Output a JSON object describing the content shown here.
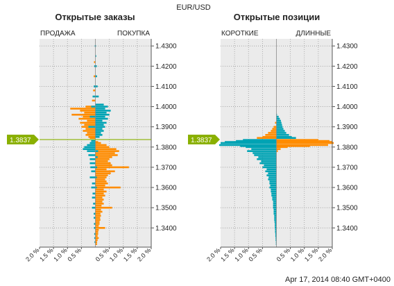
{
  "title": "EUR/USD",
  "timestamp": "Apr 17, 2014 08:40 GMT+0400",
  "current_price_label": "1.3837",
  "colors": {
    "orange": "#ff8c00",
    "teal": "#00a3b4",
    "panel": "#ebebeb",
    "price_line": "#8ab000",
    "price_tag": "#8ab000"
  },
  "chart_data": [
    {
      "type": "bar",
      "orientation": "horizontal-butterfly",
      "title": "Открытые заказы",
      "left_label": "ПРОДАЖА",
      "right_label": "ПОКУПКА",
      "x_ticks": [
        "2.0 %",
        "1.5 %",
        "1.0 %",
        "0.5 %",
        "0.5 %",
        "1.0 %",
        "1.5 %",
        "2.0 %"
      ],
      "xlim": [
        -2.0,
        2.0
      ],
      "y_ticks": [
        "1.4300",
        "1.4200",
        "1.4100",
        "1.4000",
        "1.3900",
        "1.3800",
        "1.3700",
        "1.3600",
        "1.3500",
        "1.3400"
      ],
      "ylim": [
        1.3305,
        1.4335
      ],
      "current_price": 1.3837,
      "series": [
        {
          "color": "orange",
          "side": "left",
          "points": [
            [
              1.422,
              0.05
            ],
            [
              1.415,
              0.06
            ],
            [
              1.408,
              0.08
            ],
            [
              1.403,
              0.12
            ],
            [
              1.4,
              0.35
            ],
            [
              1.399,
              0.9
            ],
            [
              1.398,
              0.55
            ],
            [
              1.397,
              0.4
            ],
            [
              1.396,
              0.85
            ],
            [
              1.395,
              0.45
            ],
            [
              1.394,
              0.6
            ],
            [
              1.393,
              0.3
            ],
            [
              1.392,
              0.55
            ],
            [
              1.391,
              0.4
            ],
            [
              1.39,
              0.5
            ],
            [
              1.389,
              0.35
            ],
            [
              1.388,
              0.45
            ],
            [
              1.387,
              0.3
            ],
            [
              1.386,
              0.35
            ],
            [
              1.385,
              0.25
            ],
            [
              1.3845,
              0.2
            ]
          ]
        },
        {
          "color": "teal",
          "side": "left",
          "points": [
            [
              1.43,
              0.02
            ],
            [
              1.42,
              0.04
            ],
            [
              1.41,
              0.06
            ],
            [
              1.405,
              0.1
            ],
            [
              1.4,
              0.15
            ],
            [
              1.395,
              0.2
            ],
            [
              1.39,
              0.25
            ],
            [
              1.383,
              0.15
            ],
            [
              1.382,
              0.2
            ],
            [
              1.381,
              0.3
            ],
            [
              1.38,
              0.4
            ],
            [
              1.379,
              0.45
            ],
            [
              1.378,
              0.3
            ],
            [
              1.376,
              0.25
            ],
            [
              1.374,
              0.2
            ],
            [
              1.372,
              0.2
            ],
            [
              1.37,
              0.18
            ],
            [
              1.368,
              0.15
            ],
            [
              1.365,
              0.2
            ],
            [
              1.362,
              0.12
            ],
            [
              1.36,
              0.15
            ],
            [
              1.357,
              0.1
            ],
            [
              1.355,
              0.12
            ],
            [
              1.352,
              0.08
            ],
            [
              1.35,
              0.12
            ],
            [
              1.347,
              0.06
            ],
            [
              1.345,
              0.06
            ],
            [
              1.342,
              0.05
            ],
            [
              1.34,
              0.05
            ],
            [
              1.337,
              0.04
            ],
            [
              1.335,
              0.04
            ],
            [
              1.333,
              0.03
            ]
          ]
        },
        {
          "color": "orange",
          "side": "right",
          "points": [
            [
              1.3825,
              0.1
            ],
            [
              1.382,
              0.2
            ],
            [
              1.381,
              0.4
            ],
            [
              1.38,
              0.5
            ],
            [
              1.379,
              0.75
            ],
            [
              1.378,
              0.85
            ],
            [
              1.377,
              0.7
            ],
            [
              1.376,
              0.8
            ],
            [
              1.375,
              0.6
            ],
            [
              1.374,
              0.5
            ],
            [
              1.373,
              0.45
            ],
            [
              1.372,
              0.55
            ],
            [
              1.371,
              0.6
            ],
            [
              1.37,
              1.2
            ],
            [
              1.369,
              0.4
            ],
            [
              1.368,
              0.7
            ],
            [
              1.367,
              0.55
            ],
            [
              1.366,
              0.45
            ],
            [
              1.365,
              0.4
            ],
            [
              1.364,
              0.35
            ],
            [
              1.363,
              0.4
            ],
            [
              1.362,
              0.45
            ],
            [
              1.361,
              0.35
            ],
            [
              1.36,
              0.9
            ],
            [
              1.359,
              0.3
            ],
            [
              1.358,
              0.4
            ],
            [
              1.357,
              0.3
            ],
            [
              1.356,
              0.35
            ],
            [
              1.355,
              0.25
            ],
            [
              1.354,
              0.3
            ],
            [
              1.353,
              0.25
            ],
            [
              1.352,
              0.3
            ],
            [
              1.351,
              0.22
            ],
            [
              1.35,
              0.6
            ],
            [
              1.349,
              0.2
            ],
            [
              1.348,
              0.25
            ],
            [
              1.347,
              0.18
            ],
            [
              1.346,
              0.2
            ],
            [
              1.345,
              0.17
            ],
            [
              1.344,
              0.18
            ],
            [
              1.343,
              0.15
            ],
            [
              1.342,
              0.15
            ],
            [
              1.341,
              0.12
            ],
            [
              1.34,
              0.35
            ],
            [
              1.339,
              0.12
            ],
            [
              1.338,
              0.1
            ],
            [
              1.337,
              0.1
            ],
            [
              1.336,
              0.08
            ],
            [
              1.335,
              0.12
            ],
            [
              1.334,
              0.08
            ],
            [
              1.333,
              0.06
            ],
            [
              1.332,
              0.06
            ]
          ]
        },
        {
          "color": "teal",
          "side": "right",
          "points": [
            [
              1.43,
              0.02
            ],
            [
              1.425,
              0.03
            ],
            [
              1.42,
              0.05
            ],
            [
              1.415,
              0.06
            ],
            [
              1.41,
              0.08
            ],
            [
              1.405,
              0.12
            ],
            [
              1.401,
              0.3
            ],
            [
              1.4,
              0.45
            ],
            [
              1.399,
              0.35
            ],
            [
              1.398,
              0.55
            ],
            [
              1.397,
              0.4
            ],
            [
              1.396,
              0.5
            ],
            [
              1.395,
              0.35
            ],
            [
              1.394,
              0.45
            ],
            [
              1.393,
              0.25
            ],
            [
              1.392,
              0.4
            ],
            [
              1.391,
              0.3
            ],
            [
              1.39,
              0.35
            ],
            [
              1.389,
              0.25
            ],
            [
              1.388,
              0.3
            ],
            [
              1.387,
              0.2
            ],
            [
              1.386,
              0.25
            ],
            [
              1.385,
              0.15
            ],
            [
              1.378,
              0.1
            ],
            [
              1.375,
              0.08
            ],
            [
              1.37,
              0.06
            ],
            [
              1.365,
              0.05
            ],
            [
              1.36,
              0.05
            ]
          ]
        }
      ]
    },
    {
      "type": "bar",
      "orientation": "horizontal-butterfly",
      "title": "Открытые позиции",
      "left_label": "КОРОТКИЕ",
      "right_label": "ДЛИННЫЕ",
      "x_ticks": [
        "2.0 %",
        "1.5 %",
        "1.0 %",
        "0.5 %",
        "0.5 %",
        "1.0 %",
        "1.5 %",
        "2.0 %"
      ],
      "xlim": [
        -2.0,
        2.0
      ],
      "y_ticks": [
        "1.4300",
        "1.4200",
        "1.4100",
        "1.4000",
        "1.3900",
        "1.3800",
        "1.3700",
        "1.3600",
        "1.3500",
        "1.3400"
      ],
      "ylim": [
        1.3305,
        1.4335
      ],
      "current_price": 1.3837,
      "series": [
        {
          "color": "teal",
          "side": "left",
          "points": [
            [
              1.3835,
              1.2
            ],
            [
              1.383,
              1.45
            ],
            [
              1.3825,
              1.85
            ],
            [
              1.382,
              2.0
            ],
            [
              1.381,
              2.05
            ],
            [
              1.3805,
              1.3
            ],
            [
              1.38,
              1.1
            ],
            [
              1.379,
              0.9
            ],
            [
              1.378,
              1.05
            ],
            [
              1.377,
              0.85
            ],
            [
              1.376,
              0.8
            ],
            [
              1.375,
              0.65
            ],
            [
              1.374,
              0.7
            ],
            [
              1.373,
              0.55
            ],
            [
              1.372,
              0.6
            ],
            [
              1.371,
              0.45
            ],
            [
              1.37,
              0.5
            ],
            [
              1.369,
              0.35
            ],
            [
              1.368,
              0.4
            ],
            [
              1.367,
              0.3
            ],
            [
              1.366,
              0.35
            ],
            [
              1.365,
              0.28
            ],
            [
              1.364,
              0.3
            ],
            [
              1.363,
              0.25
            ],
            [
              1.362,
              0.25
            ],
            [
              1.361,
              0.22
            ],
            [
              1.36,
              0.25
            ],
            [
              1.359,
              0.2
            ],
            [
              1.358,
              0.2
            ],
            [
              1.357,
              0.18
            ],
            [
              1.356,
              0.18
            ],
            [
              1.355,
              0.15
            ],
            [
              1.354,
              0.15
            ],
            [
              1.353,
              0.12
            ],
            [
              1.352,
              0.12
            ],
            [
              1.351,
              0.12
            ],
            [
              1.35,
              0.12
            ],
            [
              1.349,
              0.1
            ],
            [
              1.348,
              0.1
            ],
            [
              1.347,
              0.1
            ],
            [
              1.346,
              0.08
            ],
            [
              1.345,
              0.08
            ],
            [
              1.344,
              0.08
            ],
            [
              1.343,
              0.07
            ],
            [
              1.342,
              0.06
            ],
            [
              1.341,
              0.06
            ],
            [
              1.34,
              0.06
            ],
            [
              1.339,
              0.05
            ],
            [
              1.338,
              0.05
            ],
            [
              1.337,
              0.04
            ],
            [
              1.336,
              0.04
            ],
            [
              1.335,
              0.03
            ],
            [
              1.334,
              0.03
            ],
            [
              1.333,
              0.02
            ],
            [
              1.332,
              0.02
            ]
          ]
        },
        {
          "color": "orange",
          "side": "left",
          "points": [
            [
              1.392,
              0.05
            ],
            [
              1.39,
              0.1
            ],
            [
              1.389,
              0.15
            ],
            [
              1.388,
              0.2
            ],
            [
              1.387,
              0.3
            ],
            [
              1.386,
              0.4
            ],
            [
              1.385,
              0.5
            ],
            [
              1.3845,
              0.7
            ]
          ]
        },
        {
          "color": "teal",
          "side": "right",
          "points": [
            [
              1.396,
              0.02
            ],
            [
              1.395,
              0.08
            ],
            [
              1.394,
              0.12
            ],
            [
              1.393,
              0.16
            ],
            [
              1.392,
              0.18
            ],
            [
              1.391,
              0.2
            ],
            [
              1.39,
              0.22
            ],
            [
              1.389,
              0.25
            ],
            [
              1.388,
              0.3
            ],
            [
              1.387,
              0.35
            ],
            [
              1.386,
              0.45
            ],
            [
              1.385,
              0.55
            ],
            [
              1.3845,
              0.7
            ]
          ]
        },
        {
          "color": "orange",
          "side": "right",
          "points": [
            [
              1.3835,
              1.5
            ],
            [
              1.383,
              1.9
            ],
            [
              1.3825,
              2.0
            ],
            [
              1.382,
              2.05
            ],
            [
              1.381,
              1.85
            ],
            [
              1.3805,
              1.2
            ],
            [
              1.38,
              0.4
            ],
            [
              1.379,
              0.15
            ],
            [
              1.378,
              0.05
            ]
          ]
        }
      ]
    }
  ]
}
